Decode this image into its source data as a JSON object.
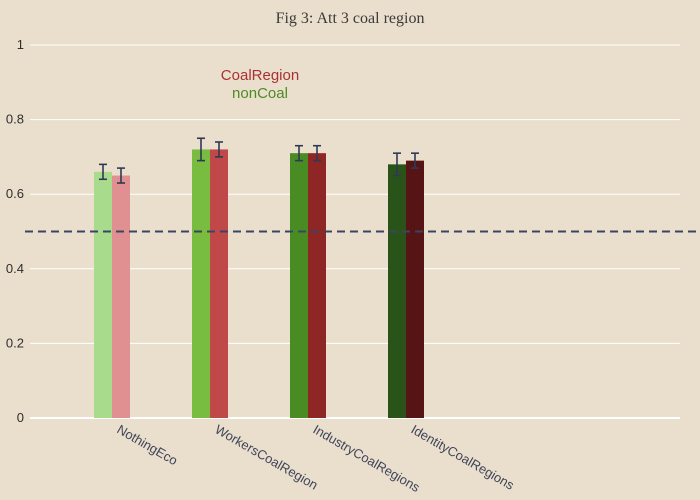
{
  "chart_data": {
    "type": "bar",
    "title": "Fig 3: Att 3 coal region",
    "categories": [
      "NothingEco",
      "WorkersCoalRegion",
      "IndustryCoalRegions",
      "IdentityCoalRegions"
    ],
    "series": [
      {
        "name": "nonCoal",
        "values": [
          0.66,
          0.72,
          0.71,
          0.68
        ],
        "error": [
          0.02,
          0.03,
          0.02,
          0.03
        ],
        "colors": [
          "#a8dc8c",
          "#78bc40",
          "#4a8c24",
          "#2a531a"
        ]
      },
      {
        "name": "CoalRegion",
        "values": [
          0.65,
          0.72,
          0.71,
          0.69
        ],
        "error": [
          0.02,
          0.02,
          0.02,
          0.02
        ],
        "colors": [
          "#e09090",
          "#c04848",
          "#8e2626",
          "#561414"
        ]
      }
    ],
    "ylim": [
      0,
      1
    ],
    "yticks": [
      "0",
      "0.2",
      "0.4",
      "0.6",
      "0.8",
      "1"
    ],
    "ytick_values": [
      0,
      0.2,
      0.4,
      0.6,
      0.8,
      1
    ],
    "reference_line": {
      "value": 0.5,
      "style": "dashed",
      "color": "#3b4463"
    },
    "annotations": [
      {
        "text": "CoalRegion",
        "color": "#a83232"
      },
      {
        "text": "nonCoal",
        "color": "#4f8b24"
      }
    ],
    "grid": true,
    "background": "#eadfcd",
    "gridline_color": "#ffffff",
    "errorbar_color": "#2e3a55"
  }
}
